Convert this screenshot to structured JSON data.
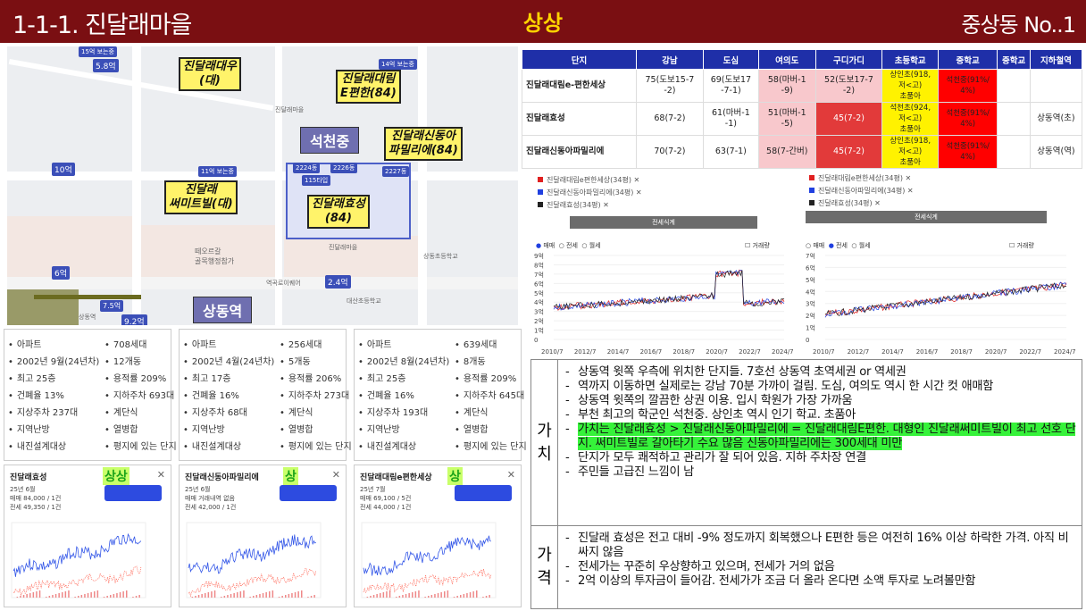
{
  "header": {
    "title": "1-1-1. 진달래마을",
    "grade": "상상",
    "right": "중상동 No..1"
  },
  "map": {
    "labels": [
      {
        "text": "진달래대우\n(대)"
      },
      {
        "text": "진달래대림\nE편한(84)"
      },
      {
        "text": "진달래신동아\n파밀리에(84)"
      },
      {
        "text": "진달래\n써미트빌(대)"
      },
      {
        "text": "진달래효성\n(84)"
      }
    ],
    "school": "석천중",
    "station": "상동역",
    "tags": [
      "15억 보는중",
      "5.8억",
      "14억 보는중",
      "11억 보는중",
      "10억",
      "2224동",
      "2226동",
      "2227동",
      "115타입",
      "2.4억",
      "9.2억",
      "6억",
      "7.5억"
    ],
    "texts": [
      "진달래마을",
      "진달래마을",
      "역곡로이퀘어",
      "떼오르갈\n골목행정참가",
      "상동역",
      "대산초등학교",
      "상동초등학교"
    ]
  },
  "complexes": [
    {
      "items": [
        [
          "아파트",
          "708세대"
        ],
        [
          "2002년 9월(24년차)",
          "12개동"
        ],
        [
          "최고 25층",
          "용적률 209%"
        ],
        [
          "건폐율 13%",
          "지하주차 693대"
        ],
        [
          "지상주차 237대",
          "계단식"
        ],
        [
          "지역난방",
          "열병합"
        ],
        [
          "내진설계대상",
          "평지에 있는 단지"
        ]
      ],
      "chart": {
        "name": "진달래효성",
        "grade": "상상",
        "sub": "25년 6월\n매매 84,000 / 1건\n전세 49,350 / 1건"
      }
    },
    {
      "items": [
        [
          "아파트",
          "256세대"
        ],
        [
          "2002년 4월(24년차)",
          "5개동"
        ],
        [
          "최고 17층",
          "용적률 206%"
        ],
        [
          "건폐율 16%",
          "지하주차 273대"
        ],
        [
          "지상주차 68대",
          "계단식"
        ],
        [
          "지역난방",
          "열병합"
        ],
        [
          "내진설계대상",
          "평지에 있는 단지"
        ]
      ],
      "chart": {
        "name": "진달래신동아파밀리에",
        "grade": "상",
        "sub": "25년 6월\n매매 거래내역 없음\n전세 42,000 / 1건"
      }
    },
    {
      "items": [
        [
          "아파트",
          "639세대"
        ],
        [
          "2002년 8월(24년차)",
          "8개동"
        ],
        [
          "최고 25층",
          "용적률 209%"
        ],
        [
          "건폐율 16%",
          "지하주차 645대"
        ],
        [
          "지상주차 193대",
          "계단식"
        ],
        [
          "지역난방",
          "열병합"
        ],
        [
          "내진설계대상",
          "평지에 있는 단지"
        ]
      ],
      "chart": {
        "name": "진달래대림e편한세상",
        "grade": "상",
        "sub": "25년 7월\n매매 69,100 / 5건\n전세 44,000 / 1건"
      }
    }
  ],
  "table": {
    "headers": [
      "단지",
      "강남",
      "도심",
      "여의도",
      "구디가디",
      "초등학교",
      "중학교",
      "중학교",
      "지하철역"
    ],
    "rows": [
      [
        "진달래대림e-편한세상",
        "75(도보15-7\n-2)",
        "69(도보17\n-7-1)",
        "58(마버-1\n-9)",
        "52(도보17-7\n-2)",
        "상인초(918,\n저<고)\n초품아",
        "석천중(91%/\n4%)",
        "",
        ""
      ],
      [
        "진달래효성",
        "68(7-2)",
        "61(마버-1\n-1)",
        "51(마버-1\n-5)",
        "45(7-2)",
        "석천초(924,\n저<고)\n초품아",
        "석천중(91%/\n4%)",
        "",
        "상동역(초)"
      ],
      [
        "진달래신동아파밀리에",
        "70(7-2)",
        "63(7-1)",
        "58(7-간버)",
        "45(7-2)",
        "상인초(918,\n저<고)\n초품아",
        "석천중(91%/\n4%)",
        "",
        "상동역(역)"
      ]
    ]
  },
  "trade_charts": [
    {
      "legend": [
        "진달래대림e편한세상(34평)",
        "진달래신동아파밀리에(34평)",
        "진달래효성(34평)"
      ],
      "set_label": "전세식계",
      "radios": [
        "매매",
        "전세",
        "월세"
      ],
      "volume": "거래량",
      "yticks": [
        "9억",
        "8억",
        "7억",
        "6억",
        "5억",
        "4억",
        "3억",
        "2억",
        "1억",
        "0"
      ],
      "xticks": [
        "2010/7",
        "2012/7",
        "2014/7",
        "2016/7",
        "2018/7",
        "2020/7",
        "2022/7",
        "2024/7"
      ]
    },
    {
      "legend": [
        "진달래대림e편한세상(34평)",
        "진달래신동아파밀리에(34평)",
        "진달래효성(34평)"
      ],
      "set_label": "전세식계",
      "radios": [
        "매매",
        "전세",
        "월세"
      ],
      "volume": "거래량",
      "yticks": [
        "7억",
        "6억",
        "5억",
        "4억",
        "3억",
        "2억",
        "1억",
        "0"
      ],
      "xticks": [
        "2010/7",
        "2012/7",
        "2014/7",
        "2016/7",
        "2018/7",
        "2020/7",
        "2022/7",
        "2024/7"
      ]
    }
  ],
  "value_section": {
    "head": [
      "가",
      "치"
    ],
    "items": [
      "상동역 윗쪽 우측에 위치한 단지들. 7호선 상동역 초역세권 or 역세권",
      "역까지 이동하면 실제로는 강남 70분 가까이 걸림. 도심, 여의도 역시 한 시간 컷 애매함",
      "상동역 윗쪽의 깔끔한 상권 이용. 입시 학원가 가장 가까움",
      "부천 최고의 학군인 석천중. 상인초 역시 인기 학교. 초품아",
      "가치는 진달래효성 > 진달래신동아파밀리에 = 진달래대림E편한. 대형인 진달래써미트빌이 최고 선호 단지. 써미트빌로 갈아타기 수요 많음 신동아파밀리에는 300세대 미만",
      "단지가 모두 쾌적하고 관리가 잘 되어 있음. 지하 주차장 연결",
      "주민들 고급진 느낌이 남"
    ]
  },
  "price_section": {
    "head": [
      "가",
      "격"
    ],
    "items": [
      "진달래 효성은 전고 대비 -9% 정도까지 회복했으나 E편한 등은 여전히 16% 이상 하락한 가격. 아직 비싸지 않음",
      "전세가는 꾸준히 우상향하고 있으며, 전세가 거의 없음",
      "2억 이상의 투자금이 들어감. 전세가가 조금 더 올라 온다면 소액 투자로 노려볼만함"
    ]
  }
}
